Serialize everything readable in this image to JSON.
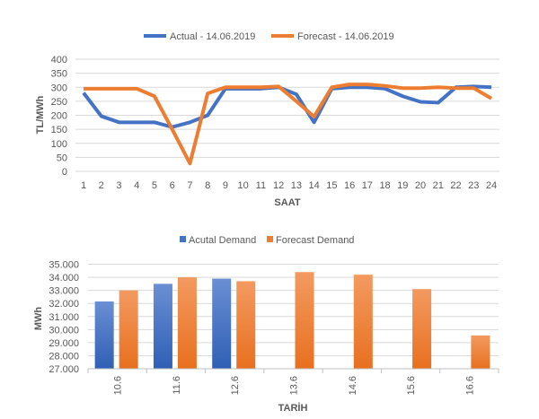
{
  "chart_data": [
    {
      "type": "line",
      "title": "",
      "xlabel": "SAAT",
      "ylabel": "TL/MWh",
      "ylim": [
        0,
        400
      ],
      "yticks": [
        0,
        50,
        100,
        150,
        200,
        250,
        300,
        350,
        400
      ],
      "grid": true,
      "legend_position": "top",
      "x": [
        1,
        2,
        3,
        4,
        5,
        6,
        7,
        8,
        9,
        10,
        11,
        12,
        13,
        14,
        15,
        16,
        17,
        18,
        19,
        20,
        21,
        22,
        23,
        24
      ],
      "series": [
        {
          "name": "Actual - 14.06.2019",
          "color": "#4472C4",
          "values": [
            280,
            197,
            175,
            175,
            175,
            158,
            175,
            200,
            295,
            295,
            295,
            300,
            275,
            175,
            295,
            300,
            300,
            295,
            268,
            248,
            245,
            300,
            303,
            300
          ]
        },
        {
          "name": "Forecast - 14.06.2019",
          "color": "#ED7D31",
          "values": [
            295,
            295,
            295,
            295,
            268,
            150,
            28,
            278,
            300,
            300,
            300,
            303,
            250,
            195,
            300,
            310,
            310,
            305,
            297,
            297,
            300,
            297,
            297,
            260
          ]
        }
      ]
    },
    {
      "type": "bar",
      "title": "",
      "xlabel": "TARİH",
      "ylabel": "MWh",
      "ylim": [
        27000,
        35000
      ],
      "yticks": [
        "27.000",
        "28.000",
        "29.000",
        "30.000",
        "31.000",
        "32.000",
        "33.000",
        "34.000",
        "35.000"
      ],
      "grid": true,
      "legend_position": "top",
      "categories": [
        "10.6",
        "11.6",
        "12.6",
        "13.6",
        "14.6",
        "15.6",
        "16.6"
      ],
      "series": [
        {
          "name": "Acutal Demand",
          "color": "#4472C4",
          "values": [
            32150,
            33500,
            33900,
            null,
            null,
            null,
            null
          ]
        },
        {
          "name": "Forecast Demand",
          "color": "#ED7D31",
          "values": [
            33000,
            34000,
            33700,
            34400,
            34200,
            33100,
            29550
          ]
        }
      ]
    }
  ]
}
